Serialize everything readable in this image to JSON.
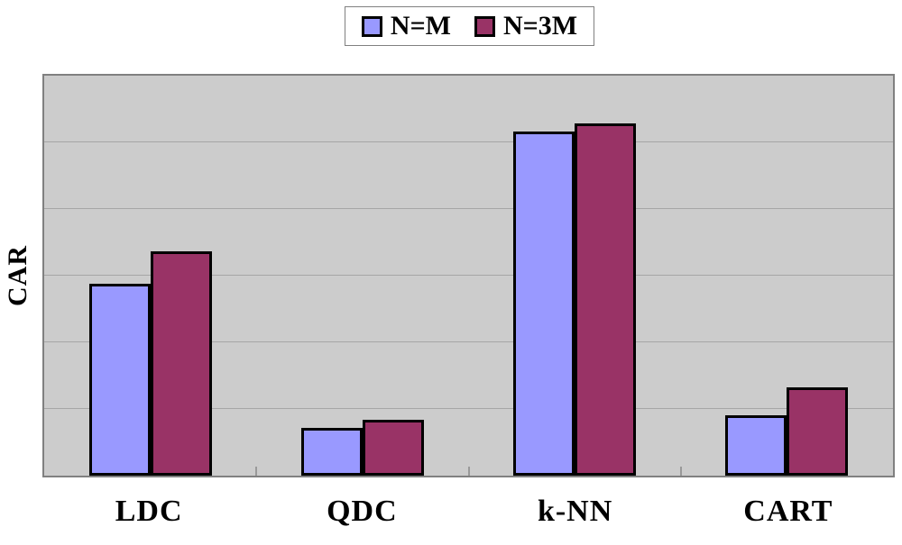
{
  "chart_data": {
    "type": "bar",
    "title": "",
    "xlabel": "",
    "ylabel": "CAR",
    "categories": [
      "LDC",
      "QDC",
      "k-NN",
      "CART"
    ],
    "series": [
      {
        "name": "N=M",
        "color": "#9999FF",
        "values": [
          0.48,
          0.12,
          0.86,
          0.15
        ]
      },
      {
        "name": "N=3M",
        "color": "#993366",
        "values": [
          0.56,
          0.14,
          0.88,
          0.22
        ]
      }
    ],
    "ylim": [
      0,
      1
    ],
    "y_tick_labels_visible": false,
    "grid": true,
    "grid_divisions": 6,
    "legend_position": "top-center",
    "colors": {
      "plot_background": "#CCCCCC",
      "gridline": "#A6A6A6",
      "plot_border": "#808080",
      "bar_border": "#000000",
      "category_tick": "#999999"
    }
  }
}
